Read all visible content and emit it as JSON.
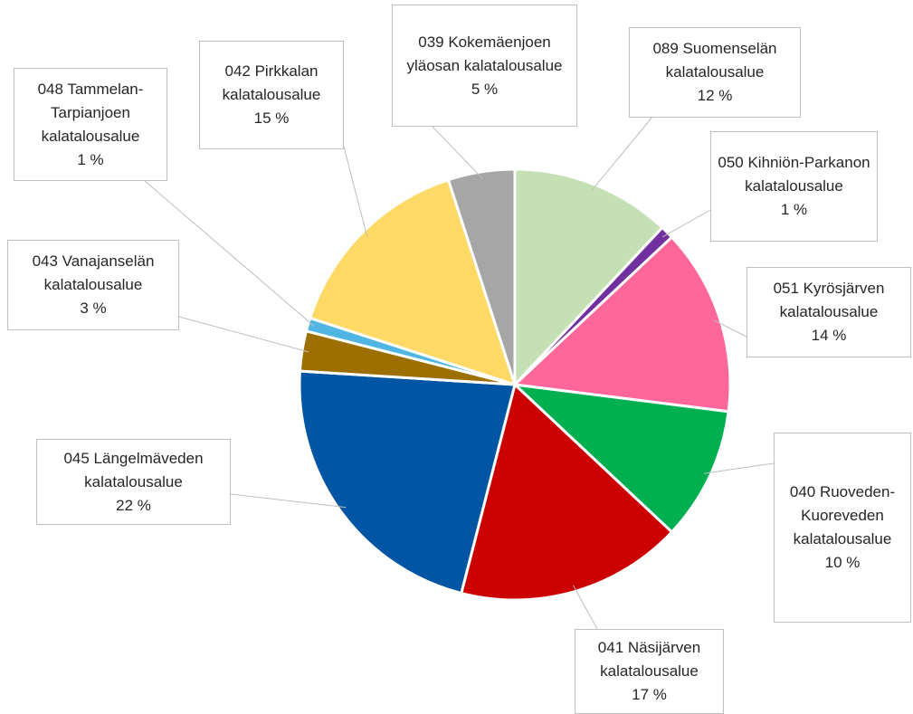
{
  "chart_data": {
    "type": "pie",
    "categories": [
      "089 Suomenselän kalatalousalue",
      "050 Kihniön-Parkanon kalatalousalue",
      "051 Kyrösjärven kalatalousalue",
      "040 Ruoveden-Kuoreveden kalatalousalue",
      "041 Näsijärven kalatalousalue",
      "045 Längelmäveden kalatalousalue",
      "043 Vanajanselän kalatalousalue",
      "048 Tammelan-Tarpianjoen kalatalousalue",
      "042 Pirkkalan kalatalousalue",
      "039 Kokemäenjoen yläosan kalatalousalue"
    ],
    "values": [
      12,
      1,
      14,
      10,
      17,
      22,
      3,
      1,
      15,
      5
    ],
    "value_labels": [
      "12 %",
      "1 %",
      "14 %",
      "10 %",
      "17 %",
      "22 %",
      "3 %",
      "1 %",
      "15 %",
      "5 %"
    ],
    "colors": [
      "#c5e0b4",
      "#7030a0",
      "#ff6699",
      "#00b050",
      "#cc0000",
      "#0055a5",
      "#9c6f00",
      "#4fb6e3",
      "#ffd966",
      "#a6a6a6"
    ]
  }
}
